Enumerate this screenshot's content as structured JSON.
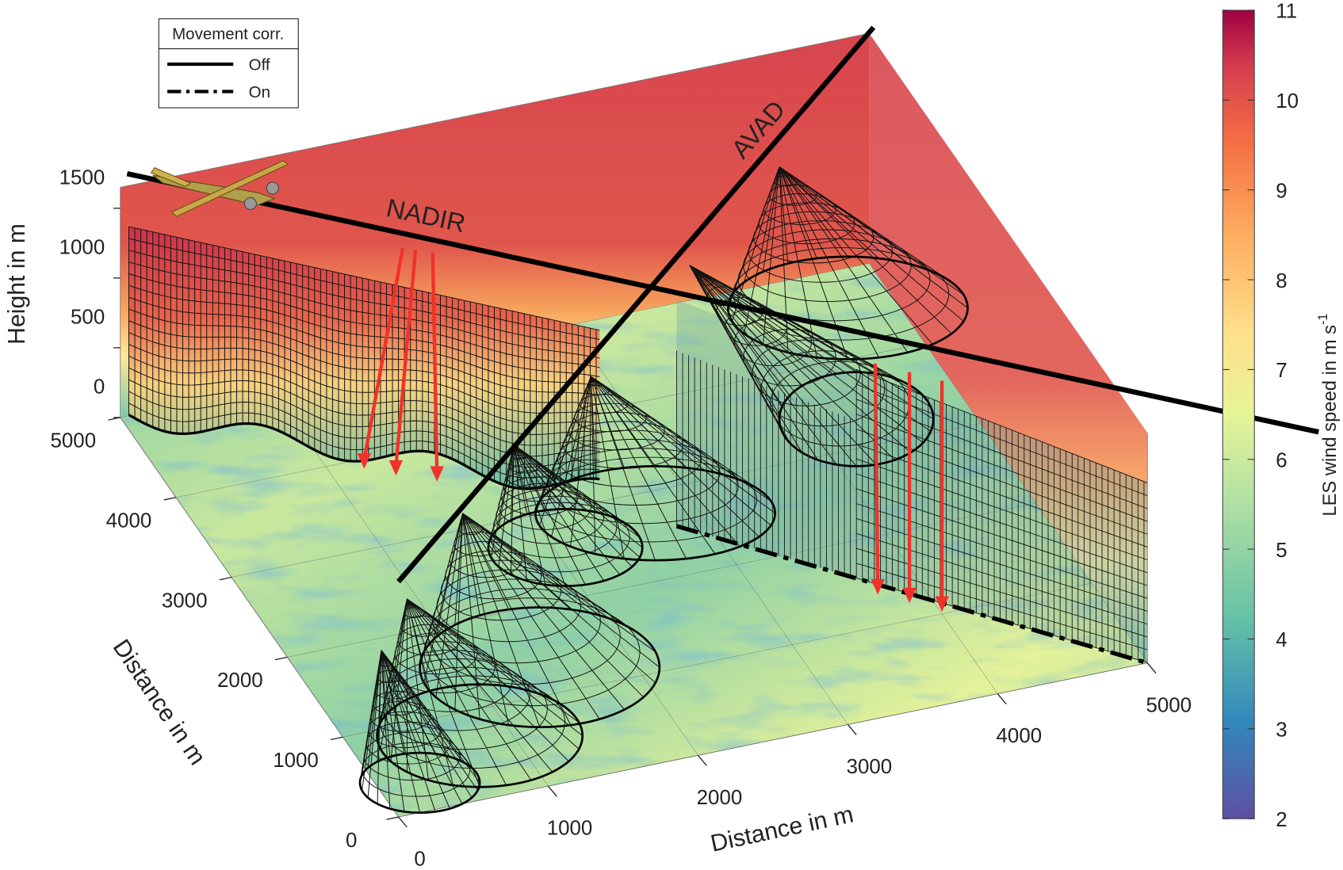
{
  "chart_data": {
    "type": "surface3d",
    "xlabel": "Distance in m",
    "ylabel": "Distance in m",
    "zlabel": "Height in m",
    "xlim": [
      0,
      5000
    ],
    "xticks": [
      0,
      1000,
      2000,
      3000,
      4000,
      5000
    ],
    "ylim": [
      0,
      5000
    ],
    "yticks": [
      0,
      1000,
      2000,
      3000,
      4000,
      5000
    ],
    "zlim": [
      0,
      1650
    ],
    "zticks": [
      0,
      500,
      1000,
      1500
    ],
    "colorbar": {
      "label": "LES wind speed in m s",
      "label_exponent": "-1",
      "lim": [
        2,
        11
      ],
      "ticks": [
        2,
        3,
        4,
        5,
        6,
        7,
        8,
        9,
        10,
        11
      ]
    },
    "legend": {
      "title": "Movement corr.",
      "entries": [
        {
          "name": "Off",
          "style": "solid"
        },
        {
          "name": "On",
          "style": "dash-dot"
        }
      ]
    },
    "annotations": [
      "NADIR",
      "AVAD"
    ]
  }
}
